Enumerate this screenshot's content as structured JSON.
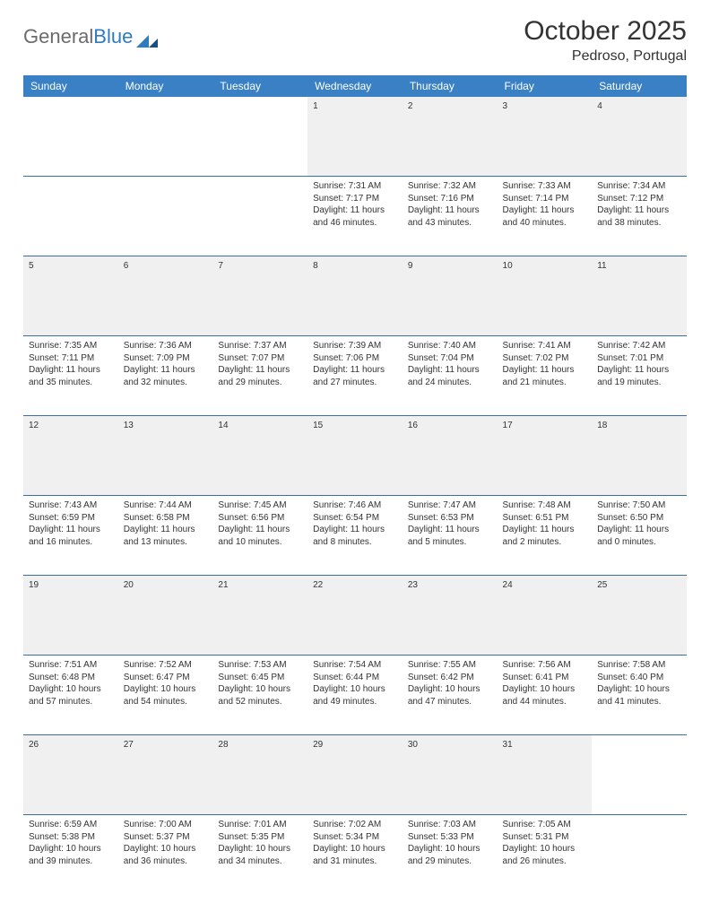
{
  "brand": {
    "part1": "General",
    "part2": "Blue"
  },
  "title": "October 2025",
  "location": "Pedroso, Portugal",
  "colors": {
    "header_bg": "#3a80c4",
    "header_text": "#ffffff",
    "rule": "#3a6ea5",
    "daynum_bg": "#f0f0f0",
    "text": "#333333",
    "brand_gray": "#6b6b6b",
    "brand_blue": "#2f7bbf"
  },
  "weekdays": [
    "Sunday",
    "Monday",
    "Tuesday",
    "Wednesday",
    "Thursday",
    "Friday",
    "Saturday"
  ],
  "weeks": [
    {
      "nums": [
        "",
        "",
        "",
        "1",
        "2",
        "3",
        "4"
      ],
      "cells": [
        [],
        [],
        [],
        [
          "Sunrise: 7:31 AM",
          "Sunset: 7:17 PM",
          "Daylight: 11 hours",
          "and 46 minutes."
        ],
        [
          "Sunrise: 7:32 AM",
          "Sunset: 7:16 PM",
          "Daylight: 11 hours",
          "and 43 minutes."
        ],
        [
          "Sunrise: 7:33 AM",
          "Sunset: 7:14 PM",
          "Daylight: 11 hours",
          "and 40 minutes."
        ],
        [
          "Sunrise: 7:34 AM",
          "Sunset: 7:12 PM",
          "Daylight: 11 hours",
          "and 38 minutes."
        ]
      ]
    },
    {
      "nums": [
        "5",
        "6",
        "7",
        "8",
        "9",
        "10",
        "11"
      ],
      "cells": [
        [
          "Sunrise: 7:35 AM",
          "Sunset: 7:11 PM",
          "Daylight: 11 hours",
          "and 35 minutes."
        ],
        [
          "Sunrise: 7:36 AM",
          "Sunset: 7:09 PM",
          "Daylight: 11 hours",
          "and 32 minutes."
        ],
        [
          "Sunrise: 7:37 AM",
          "Sunset: 7:07 PM",
          "Daylight: 11 hours",
          "and 29 minutes."
        ],
        [
          "Sunrise: 7:39 AM",
          "Sunset: 7:06 PM",
          "Daylight: 11 hours",
          "and 27 minutes."
        ],
        [
          "Sunrise: 7:40 AM",
          "Sunset: 7:04 PM",
          "Daylight: 11 hours",
          "and 24 minutes."
        ],
        [
          "Sunrise: 7:41 AM",
          "Sunset: 7:02 PM",
          "Daylight: 11 hours",
          "and 21 minutes."
        ],
        [
          "Sunrise: 7:42 AM",
          "Sunset: 7:01 PM",
          "Daylight: 11 hours",
          "and 19 minutes."
        ]
      ]
    },
    {
      "nums": [
        "12",
        "13",
        "14",
        "15",
        "16",
        "17",
        "18"
      ],
      "cells": [
        [
          "Sunrise: 7:43 AM",
          "Sunset: 6:59 PM",
          "Daylight: 11 hours",
          "and 16 minutes."
        ],
        [
          "Sunrise: 7:44 AM",
          "Sunset: 6:58 PM",
          "Daylight: 11 hours",
          "and 13 minutes."
        ],
        [
          "Sunrise: 7:45 AM",
          "Sunset: 6:56 PM",
          "Daylight: 11 hours",
          "and 10 minutes."
        ],
        [
          "Sunrise: 7:46 AM",
          "Sunset: 6:54 PM",
          "Daylight: 11 hours",
          "and 8 minutes."
        ],
        [
          "Sunrise: 7:47 AM",
          "Sunset: 6:53 PM",
          "Daylight: 11 hours",
          "and 5 minutes."
        ],
        [
          "Sunrise: 7:48 AM",
          "Sunset: 6:51 PM",
          "Daylight: 11 hours",
          "and 2 minutes."
        ],
        [
          "Sunrise: 7:50 AM",
          "Sunset: 6:50 PM",
          "Daylight: 11 hours",
          "and 0 minutes."
        ]
      ]
    },
    {
      "nums": [
        "19",
        "20",
        "21",
        "22",
        "23",
        "24",
        "25"
      ],
      "cells": [
        [
          "Sunrise: 7:51 AM",
          "Sunset: 6:48 PM",
          "Daylight: 10 hours",
          "and 57 minutes."
        ],
        [
          "Sunrise: 7:52 AM",
          "Sunset: 6:47 PM",
          "Daylight: 10 hours",
          "and 54 minutes."
        ],
        [
          "Sunrise: 7:53 AM",
          "Sunset: 6:45 PM",
          "Daylight: 10 hours",
          "and 52 minutes."
        ],
        [
          "Sunrise: 7:54 AM",
          "Sunset: 6:44 PM",
          "Daylight: 10 hours",
          "and 49 minutes."
        ],
        [
          "Sunrise: 7:55 AM",
          "Sunset: 6:42 PM",
          "Daylight: 10 hours",
          "and 47 minutes."
        ],
        [
          "Sunrise: 7:56 AM",
          "Sunset: 6:41 PM",
          "Daylight: 10 hours",
          "and 44 minutes."
        ],
        [
          "Sunrise: 7:58 AM",
          "Sunset: 6:40 PM",
          "Daylight: 10 hours",
          "and 41 minutes."
        ]
      ]
    },
    {
      "nums": [
        "26",
        "27",
        "28",
        "29",
        "30",
        "31",
        ""
      ],
      "cells": [
        [
          "Sunrise: 6:59 AM",
          "Sunset: 5:38 PM",
          "Daylight: 10 hours",
          "and 39 minutes."
        ],
        [
          "Sunrise: 7:00 AM",
          "Sunset: 5:37 PM",
          "Daylight: 10 hours",
          "and 36 minutes."
        ],
        [
          "Sunrise: 7:01 AM",
          "Sunset: 5:35 PM",
          "Daylight: 10 hours",
          "and 34 minutes."
        ],
        [
          "Sunrise: 7:02 AM",
          "Sunset: 5:34 PM",
          "Daylight: 10 hours",
          "and 31 minutes."
        ],
        [
          "Sunrise: 7:03 AM",
          "Sunset: 5:33 PM",
          "Daylight: 10 hours",
          "and 29 minutes."
        ],
        [
          "Sunrise: 7:05 AM",
          "Sunset: 5:31 PM",
          "Daylight: 10 hours",
          "and 26 minutes."
        ],
        []
      ]
    }
  ]
}
